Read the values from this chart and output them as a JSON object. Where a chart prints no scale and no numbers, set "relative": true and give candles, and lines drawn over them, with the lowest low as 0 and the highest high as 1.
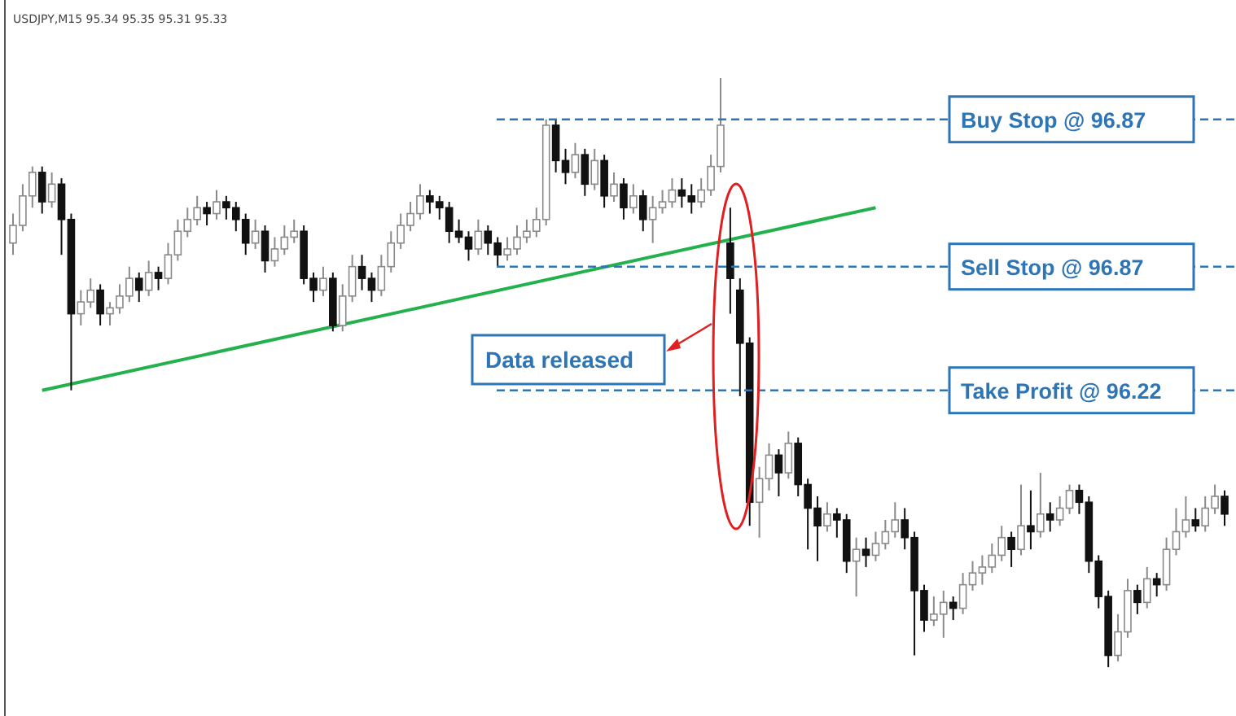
{
  "chart_data": {
    "type": "candlestick",
    "relative": true,
    "categories": [
      null,
      null,
      null,
      null,
      null,
      null,
      null,
      null,
      null,
      null,
      null,
      null,
      null,
      null,
      null,
      null,
      null,
      null,
      null,
      null,
      null,
      null,
      null,
      null,
      null,
      null,
      null,
      null,
      null,
      null,
      null,
      null,
      null,
      null,
      null,
      null,
      null,
      null,
      null,
      null,
      null,
      null,
      null,
      null,
      null,
      null,
      null,
      null,
      null,
      null,
      null,
      null,
      null,
      null,
      null,
      null,
      null,
      null,
      null,
      null,
      null,
      null,
      null,
      null,
      null,
      null,
      null,
      null,
      null,
      null,
      null,
      null,
      null,
      null,
      null,
      null,
      null,
      null,
      null,
      null,
      null,
      null,
      null,
      null,
      null,
      null,
      null,
      null,
      null,
      null,
      null,
      null,
      null,
      null,
      null,
      null,
      null,
      null,
      null,
      null,
      null,
      null,
      null,
      null,
      null,
      null,
      null,
      null,
      null,
      null,
      null,
      null,
      null,
      null,
      null,
      null,
      null,
      null,
      null,
      null,
      null,
      null,
      null,
      null,
      null,
      null
    ],
    "ohlc": [
      [
        0.72,
        0.77,
        0.7,
        0.75
      ],
      [
        0.75,
        0.82,
        0.74,
        0.8
      ],
      [
        0.8,
        0.85,
        0.78,
        0.84
      ],
      [
        0.84,
        0.85,
        0.77,
        0.79
      ],
      [
        0.79,
        0.84,
        0.78,
        0.82
      ],
      [
        0.82,
        0.83,
        0.7,
        0.76
      ],
      [
        0.76,
        0.77,
        0.47,
        0.6
      ],
      [
        0.6,
        0.64,
        0.58,
        0.62
      ],
      [
        0.62,
        0.66,
        0.61,
        0.64
      ],
      [
        0.64,
        0.65,
        0.58,
        0.6
      ],
      [
        0.6,
        0.62,
        0.58,
        0.61
      ],
      [
        0.61,
        0.65,
        0.6,
        0.63
      ],
      [
        0.63,
        0.68,
        0.62,
        0.66
      ],
      [
        0.66,
        0.67,
        0.62,
        0.64
      ],
      [
        0.64,
        0.69,
        0.63,
        0.67
      ],
      [
        0.67,
        0.68,
        0.64,
        0.66
      ],
      [
        0.66,
        0.72,
        0.65,
        0.7
      ],
      [
        0.7,
        0.76,
        0.69,
        0.74
      ],
      [
        0.74,
        0.78,
        0.73,
        0.76
      ],
      [
        0.76,
        0.8,
        0.75,
        0.78
      ],
      [
        0.78,
        0.79,
        0.75,
        0.77
      ],
      [
        0.77,
        0.81,
        0.76,
        0.79
      ],
      [
        0.79,
        0.8,
        0.76,
        0.78
      ],
      [
        0.78,
        0.79,
        0.74,
        0.76
      ],
      [
        0.76,
        0.77,
        0.7,
        0.72
      ],
      [
        0.72,
        0.76,
        0.71,
        0.74
      ],
      [
        0.74,
        0.75,
        0.67,
        0.69
      ],
      [
        0.69,
        0.73,
        0.68,
        0.71
      ],
      [
        0.71,
        0.75,
        0.7,
        0.73
      ],
      [
        0.73,
        0.76,
        0.72,
        0.74
      ],
      [
        0.74,
        0.75,
        0.65,
        0.66
      ],
      [
        0.66,
        0.67,
        0.62,
        0.64
      ],
      [
        0.64,
        0.68,
        0.63,
        0.66
      ],
      [
        0.66,
        0.67,
        0.57,
        0.58
      ],
      [
        0.58,
        0.65,
        0.57,
        0.63
      ],
      [
        0.63,
        0.7,
        0.62,
        0.68
      ],
      [
        0.68,
        0.7,
        0.64,
        0.66
      ],
      [
        0.66,
        0.67,
        0.62,
        0.64
      ],
      [
        0.64,
        0.7,
        0.63,
        0.68
      ],
      [
        0.68,
        0.74,
        0.67,
        0.72
      ],
      [
        0.72,
        0.77,
        0.71,
        0.75
      ],
      [
        0.75,
        0.79,
        0.74,
        0.77
      ],
      [
        0.77,
        0.82,
        0.76,
        0.8
      ],
      [
        0.8,
        0.81,
        0.77,
        0.79
      ],
      [
        0.79,
        0.8,
        0.76,
        0.78
      ],
      [
        0.78,
        0.79,
        0.72,
        0.74
      ],
      [
        0.74,
        0.76,
        0.72,
        0.73
      ],
      [
        0.73,
        0.74,
        0.69,
        0.71
      ],
      [
        0.71,
        0.76,
        0.7,
        0.74
      ],
      [
        0.74,
        0.75,
        0.7,
        0.72
      ],
      [
        0.72,
        0.73,
        0.68,
        0.7
      ],
      [
        0.7,
        0.73,
        0.69,
        0.71
      ],
      [
        0.71,
        0.75,
        0.7,
        0.73
      ],
      [
        0.73,
        0.76,
        0.72,
        0.74
      ],
      [
        0.74,
        0.78,
        0.73,
        0.76
      ],
      [
        0.76,
        0.93,
        0.75,
        0.92
      ],
      [
        0.92,
        0.93,
        0.84,
        0.86
      ],
      [
        0.86,
        0.88,
        0.82,
        0.84
      ],
      [
        0.84,
        0.89,
        0.83,
        0.87
      ],
      [
        0.87,
        0.88,
        0.8,
        0.82
      ],
      [
        0.82,
        0.88,
        0.81,
        0.86
      ],
      [
        0.86,
        0.87,
        0.78,
        0.8
      ],
      [
        0.8,
        0.84,
        0.79,
        0.82
      ],
      [
        0.82,
        0.83,
        0.76,
        0.78
      ],
      [
        0.78,
        0.82,
        0.77,
        0.8
      ],
      [
        0.8,
        0.81,
        0.74,
        0.76
      ],
      [
        0.76,
        0.8,
        0.72,
        0.78
      ],
      [
        0.78,
        0.81,
        0.77,
        0.79
      ],
      [
        0.79,
        0.83,
        0.78,
        0.81
      ],
      [
        0.81,
        0.83,
        0.78,
        0.8
      ],
      [
        0.8,
        0.82,
        0.77,
        0.79
      ],
      [
        0.79,
        0.83,
        0.78,
        0.81
      ],
      [
        0.81,
        0.87,
        0.8,
        0.85
      ],
      [
        0.85,
        1.0,
        0.84,
        0.92
      ],
      [
        0.72,
        0.78,
        0.6,
        0.66
      ],
      [
        0.64,
        0.66,
        0.46,
        0.55
      ],
      [
        0.55,
        0.56,
        0.24,
        0.28
      ],
      [
        0.28,
        0.34,
        0.22,
        0.32
      ],
      [
        0.32,
        0.38,
        0.3,
        0.36
      ],
      [
        0.36,
        0.37,
        0.29,
        0.33
      ],
      [
        0.33,
        0.4,
        0.32,
        0.38
      ],
      [
        0.38,
        0.39,
        0.29,
        0.31
      ],
      [
        0.31,
        0.32,
        0.2,
        0.27
      ],
      [
        0.27,
        0.29,
        0.18,
        0.24
      ],
      [
        0.24,
        0.28,
        0.23,
        0.26
      ],
      [
        0.26,
        0.27,
        0.22,
        0.25
      ],
      [
        0.25,
        0.26,
        0.16,
        0.18
      ],
      [
        0.18,
        0.22,
        0.12,
        0.2
      ],
      [
        0.2,
        0.22,
        0.17,
        0.19
      ],
      [
        0.19,
        0.23,
        0.18,
        0.21
      ],
      [
        0.21,
        0.25,
        0.2,
        0.23
      ],
      [
        0.23,
        0.28,
        0.22,
        0.25
      ],
      [
        0.25,
        0.27,
        0.2,
        0.22
      ],
      [
        0.22,
        0.23,
        0.02,
        0.13
      ],
      [
        0.13,
        0.14,
        0.06,
        0.08
      ],
      [
        0.08,
        0.12,
        0.07,
        0.09
      ],
      [
        0.09,
        0.13,
        0.05,
        0.11
      ],
      [
        0.11,
        0.12,
        0.08,
        0.1
      ],
      [
        0.1,
        0.16,
        0.09,
        0.14
      ],
      [
        0.14,
        0.18,
        0.13,
        0.16
      ],
      [
        0.16,
        0.19,
        0.14,
        0.17
      ],
      [
        0.17,
        0.21,
        0.16,
        0.19
      ],
      [
        0.19,
        0.24,
        0.18,
        0.22
      ],
      [
        0.22,
        0.23,
        0.17,
        0.2
      ],
      [
        0.2,
        0.31,
        0.19,
        0.24
      ],
      [
        0.24,
        0.3,
        0.2,
        0.23
      ],
      [
        0.23,
        0.33,
        0.22,
        0.26
      ],
      [
        0.26,
        0.28,
        0.23,
        0.25
      ],
      [
        0.25,
        0.29,
        0.24,
        0.27
      ],
      [
        0.27,
        0.31,
        0.26,
        0.3
      ],
      [
        0.3,
        0.31,
        0.26,
        0.28
      ],
      [
        0.28,
        0.29,
        0.16,
        0.18
      ],
      [
        0.18,
        0.19,
        0.1,
        0.12
      ],
      [
        0.12,
        0.13,
        0.0,
        0.02
      ],
      [
        0.02,
        0.09,
        0.01,
        0.06
      ],
      [
        0.06,
        0.15,
        0.05,
        0.13
      ],
      [
        0.13,
        0.14,
        0.09,
        0.11
      ],
      [
        0.11,
        0.17,
        0.1,
        0.15
      ],
      [
        0.15,
        0.16,
        0.12,
        0.14
      ],
      [
        0.14,
        0.22,
        0.13,
        0.2
      ],
      [
        0.2,
        0.27,
        0.19,
        0.23
      ],
      [
        0.23,
        0.29,
        0.22,
        0.25
      ],
      [
        0.25,
        0.27,
        0.23,
        0.24
      ],
      [
        0.24,
        0.29,
        0.23,
        0.27
      ],
      [
        0.27,
        0.31,
        0.26,
        0.29
      ],
      [
        0.29,
        0.3,
        0.24,
        0.26
      ]
    ],
    "series": [
      {
        "type": "line",
        "color": "#22b14c",
        "values": [
          null,
          null,
          null,
          0.47,
          null,
          null,
          null,
          null,
          null,
          null,
          null,
          null,
          null,
          null,
          null,
          null,
          null,
          null,
          null,
          null,
          null,
          null,
          null,
          null,
          null,
          null,
          null,
          null,
          null,
          null,
          null,
          null,
          null,
          null,
          null,
          null,
          null,
          null,
          null,
          null,
          null,
          null,
          null,
          null,
          null,
          null,
          null,
          null,
          null,
          null,
          null,
          null,
          null,
          null,
          null,
          null,
          null,
          null,
          null,
          null,
          null,
          null,
          null,
          null,
          null,
          null,
          null,
          null,
          null,
          null,
          null,
          null,
          null,
          null,
          null,
          null,
          null,
          null,
          null,
          null,
          null,
          null,
          null,
          null,
          null,
          null,
          null,
          null,
          null,
          0.78,
          null,
          null,
          null,
          null,
          null,
          null,
          null,
          null,
          null,
          null,
          null,
          null,
          null,
          null,
          null,
          null,
          null,
          null,
          null,
          null,
          null,
          null,
          null,
          null,
          null,
          null,
          null,
          null,
          null,
          null,
          null,
          null,
          null,
          null,
          null,
          null
        ]
      }
    ],
    "ref_lines": [
      {
        "axis": "y",
        "value": 0.93,
        "label": "Buy Stop @ 96.87",
        "color": "#2e75b6",
        "line_style": "dashed"
      },
      {
        "axis": "y",
        "value": 0.68,
        "label": "Sell Stop @ 96.87",
        "color": "#2e75b6",
        "line_style": "dashed"
      },
      {
        "axis": "y",
        "value": 0.47,
        "label": "Take Profit @ 96.22",
        "color": "#2e75b6",
        "line_style": "dashed"
      }
    ],
    "annotations": [
      "USDJPY,M15 95.34 95.35 95.31 95.33",
      "Data released"
    ]
  }
}
